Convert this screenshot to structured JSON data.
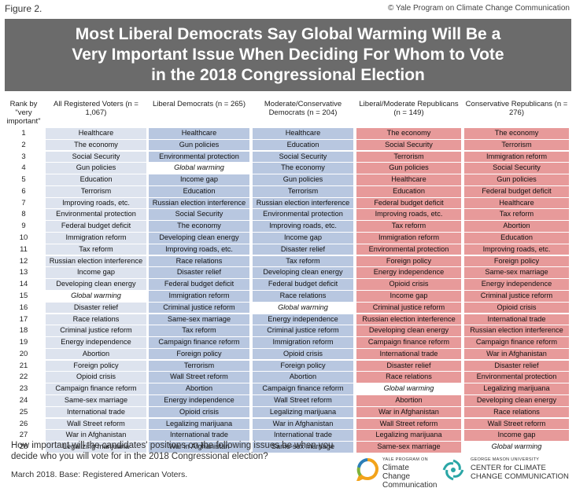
{
  "figure_label": "Figure 2.",
  "credit": "© Yale Program on Climate Change Communication",
  "title": "Most Liberal Democrats Say Global Warming Will Be a Very Important Issue When Deciding For Whom to Vote in the 2018 Congressional Election",
  "rank_header": "Rank by \"very important\"",
  "ranks": [
    "1",
    "2",
    "3",
    "4",
    "5",
    "6",
    "7",
    "8",
    "9",
    "10",
    "11",
    "12",
    "13",
    "14",
    "15",
    "16",
    "17",
    "18",
    "19",
    "20",
    "21",
    "22",
    "23",
    "24",
    "25",
    "26",
    "27",
    "28"
  ],
  "columns": [
    {
      "header": "All Registered Voters (n = 1,067)",
      "color": "#dde3ee",
      "items": [
        "Healthcare",
        "The economy",
        "Social Security",
        "Gun policies",
        "Education",
        "Terrorism",
        "Improving roads, etc.",
        "Environmental protection",
        "Federal budget deficit",
        "Immigration reform",
        "Tax reform",
        "Russian election interference",
        "Income gap",
        "Developing clean energy",
        "Global warming",
        "Disaster relief",
        "Race relations",
        "Criminal justice reform",
        "Energy independence",
        "Abortion",
        "Foreign policy",
        "Opioid crisis",
        "Campaign finance reform",
        "Same-sex marriage",
        "International trade",
        "Wall Street reform",
        "War in Afghanistan",
        "Legalizing marijuana"
      ]
    },
    {
      "header": "Liberal Democrats (n = 265)",
      "color": "#b8c7e0",
      "items": [
        "Healthcare",
        "Gun policies",
        "Environmental protection",
        "Global warming",
        "Income gap",
        "Education",
        "Russian election interference",
        "Social Security",
        "The economy",
        "Developing clean energy",
        "Improving roads, etc.",
        "Race relations",
        "Disaster relief",
        "Federal budget deficit",
        "Immigration reform",
        "Criminal justice reform",
        "Same-sex marriage",
        "Tax reform",
        "Campaign finance reform",
        "Foreign policy",
        "Terrorism",
        "Wall Street reform",
        "Abortion",
        "Energy independence",
        "Opioid crisis",
        "Legalizing marijuana",
        "International trade",
        "War in Afghanistan"
      ]
    },
    {
      "header": "Moderate/Conservative Democrats (n = 204)",
      "color": "#b8c7e0",
      "items": [
        "Healthcare",
        "Education",
        "Social Security",
        "The economy",
        "Gun policies",
        "Terrorism",
        "Russian election interference",
        "Environmental protection",
        "Improving roads, etc.",
        "Income gap",
        "Disaster relief",
        "Tax reform",
        "Developing clean energy",
        "Federal budget deficit",
        "Race relations",
        "Global warming",
        "Energy independence",
        "Criminal justice reform",
        "Immigration reform",
        "Opioid crisis",
        "Foreign policy",
        "Abortion",
        "Campaign finance reform",
        "Wall Street reform",
        "Legalizing marijuana",
        "War in Afghanistan",
        "International trade",
        "Same-sex marriage"
      ]
    },
    {
      "header": "Liberal/Moderate Republicans (n = 149)",
      "color": "#e79a9a",
      "items": [
        "The economy",
        "Social Security",
        "Terrorism",
        "Gun policies",
        "Healthcare",
        "Education",
        "Federal budget deficit",
        "Improving roads, etc.",
        "Tax reform",
        "Immigration reform",
        "Environmental protection",
        "Foreign policy",
        "Energy independence",
        "Opioid crisis",
        "Income gap",
        "Criminal justice reform",
        "Russian election interference",
        "Developing clean energy",
        "Campaign finance reform",
        "International trade",
        "Disaster relief",
        "Race relations",
        "Global warming",
        "Abortion",
        "War in Afghanistan",
        "Wall Street reform",
        "Legalizing marijuana",
        "Same-sex marriage"
      ]
    },
    {
      "header": "Conservative Republicans (n = 276)",
      "color": "#e79a9a",
      "items": [
        "The economy",
        "Terrorism",
        "Immigration reform",
        "Social Security",
        "Gun policies",
        "Federal budget deficit",
        "Healthcare",
        "Tax reform",
        "Abortion",
        "Education",
        "Improving roads, etc.",
        "Foreign policy",
        "Same-sex marriage",
        "Energy independence",
        "Criminal justice reform",
        "Opioid crisis",
        "International trade",
        "Russian election interference",
        "Campaign finance reform",
        "War in Afghanistan",
        "Disaster relief",
        "Environmental protection",
        "Legalizing marijuana",
        "Developing clean energy",
        "Race relations",
        "Wall Street reform",
        "Income gap",
        "Global warming"
      ]
    }
  ],
  "highlight_item": "Global warming",
  "question": "How important will the candidates' positions on the following issues be when you decide who you will vote for in the 2018 Congressional election?",
  "base": "March 2018. Base: Registered American Voters.",
  "logo_yale": {
    "small": "YALE PROGRAM ON",
    "big": "Climate Change Communication"
  },
  "logo_gmu": {
    "small": "GEORGE MASON UNIVERSITY",
    "big": "CENTER for CLIMATE CHANGE COMMUNICATION"
  }
}
